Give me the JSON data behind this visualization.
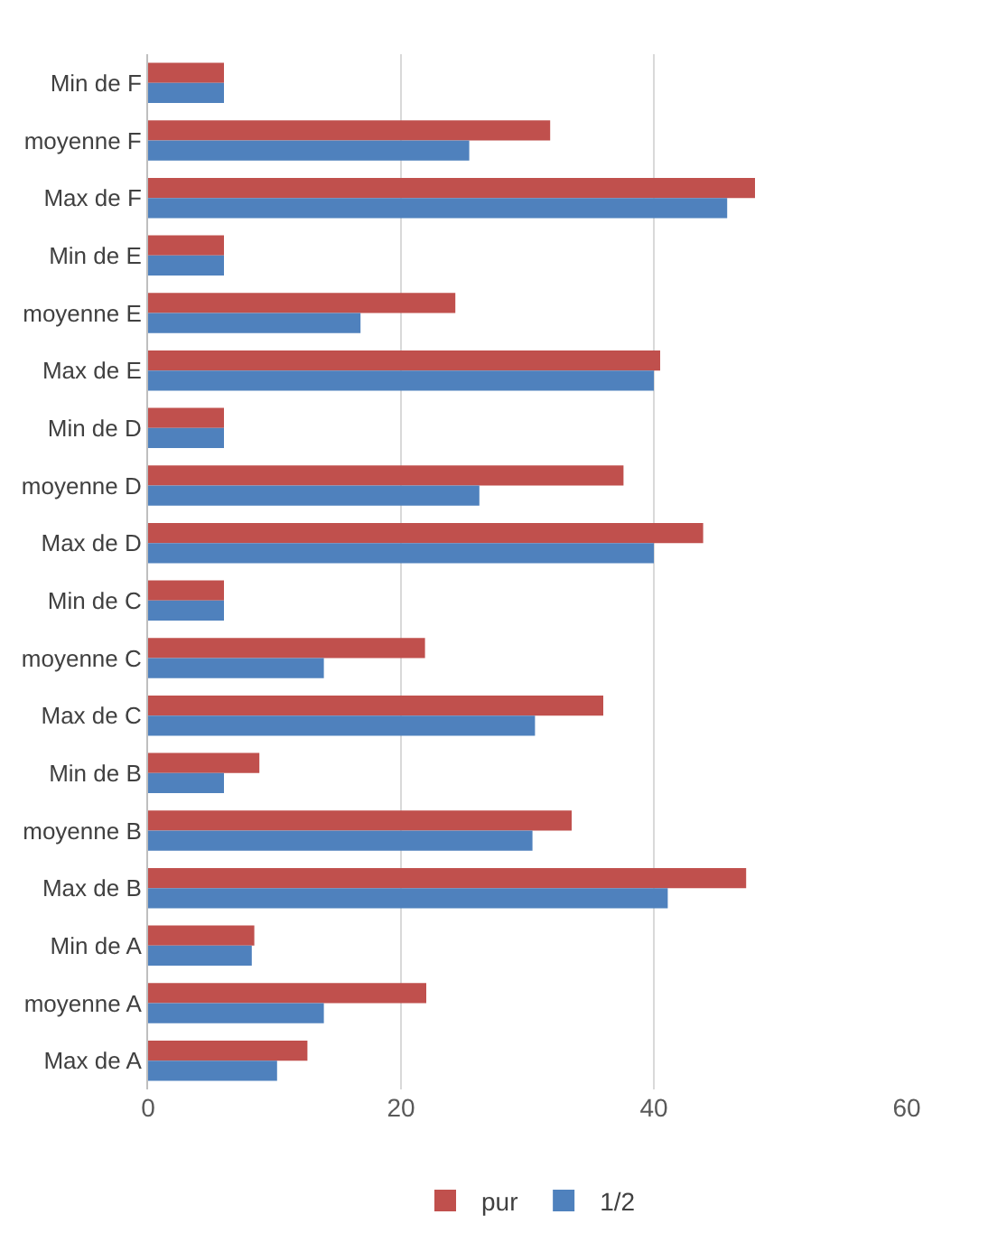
{
  "chart_data": {
    "type": "bar",
    "orientation": "horizontal",
    "categories": [
      "Min de F",
      "moyenne F",
      "Max de F",
      "Min de E",
      "moyenne E",
      "Max de E",
      "Min de D",
      "moyenne D",
      "Max de D",
      "Min de C",
      "moyenne C",
      "Max de C",
      "Min de B",
      "moyenne B",
      "Max de B",
      "Min de A",
      "moyenne A",
      "Max de A"
    ],
    "series": [
      {
        "name": "pur",
        "color": "#c0504d",
        "values": [
          6.0,
          31.8,
          48.0,
          6.0,
          24.3,
          40.5,
          6.0,
          37.6,
          43.9,
          6.0,
          21.9,
          36.0,
          8.8,
          33.5,
          47.3,
          8.4,
          22.0,
          12.6
        ]
      },
      {
        "name": "1/2",
        "color": "#4f81bd",
        "values": [
          6.0,
          25.4,
          45.8,
          6.0,
          16.8,
          40.0,
          6.0,
          26.2,
          40.0,
          6.0,
          13.9,
          30.6,
          6.0,
          30.4,
          41.1,
          8.2,
          13.9,
          10.2
        ]
      }
    ],
    "xlim": [
      0,
      60
    ],
    "xticks": [
      0,
      20,
      40,
      60
    ],
    "grid": "x",
    "legend": "bottom"
  }
}
